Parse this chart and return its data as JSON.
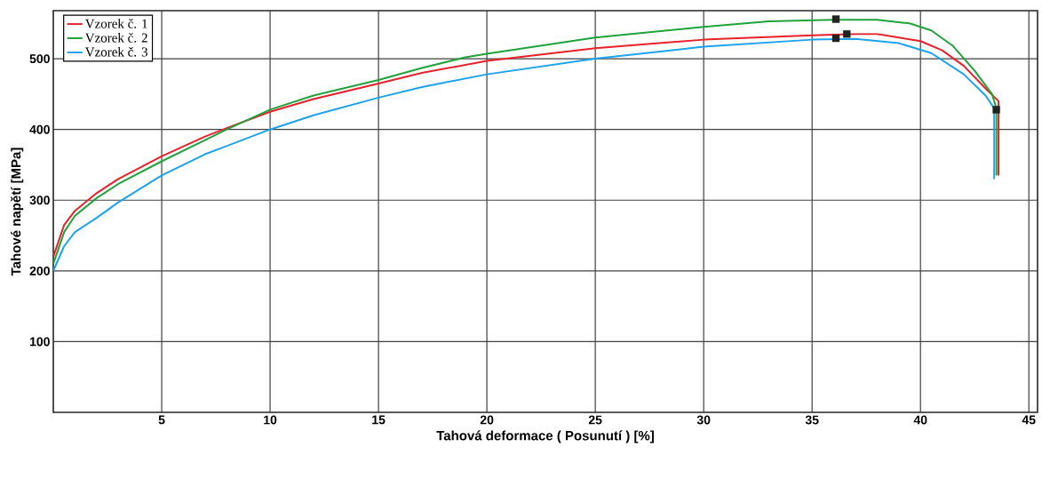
{
  "chart_data": {
    "type": "line",
    "xlabel": "Tahová deformace ( Posunutí ) [%]",
    "ylabel": "Tahové napětí [MPa]",
    "xlim": [
      0,
      45.4
    ],
    "ylim": [
      0,
      568
    ],
    "xticks": [
      5,
      10,
      15,
      20,
      25,
      30,
      35,
      40,
      45
    ],
    "yticks": [
      100,
      200,
      300,
      400,
      500
    ],
    "grid": true,
    "legend": "top left",
    "marker": "none",
    "line_style": "solid",
    "series": [
      {
        "name": "Vzorek č. 1",
        "color": "#e8202a",
        "x": [
          0,
          0.5,
          1,
          2,
          3,
          5,
          7,
          8,
          10,
          12,
          15,
          17,
          20,
          25,
          30,
          35,
          37,
          38,
          40,
          41,
          42,
          43,
          43.6,
          43.6
        ],
        "values": [
          220,
          265,
          285,
          310,
          330,
          362,
          390,
          402,
          425,
          443,
          465,
          480,
          497,
          515,
          527,
          533,
          535,
          535,
          525,
          512,
          490,
          458,
          440,
          335
        ]
      },
      {
        "name": "Vzorek č. 2",
        "color": "#1fa33a",
        "x": [
          0,
          0.5,
          1,
          2,
          3,
          5,
          7,
          8,
          10,
          12,
          15,
          17,
          19,
          20,
          25,
          30,
          33,
          36,
          38,
          39.5,
          40.5,
          41.5,
          42.5,
          43.3,
          43.5,
          43.5
        ],
        "values": [
          210,
          255,
          278,
          303,
          323,
          355,
          385,
          400,
          428,
          448,
          470,
          487,
          502,
          507,
          530,
          545,
          553,
          555,
          555,
          550,
          540,
          518,
          483,
          450,
          430,
          335
        ]
      },
      {
        "name": "Vzorek č. 3",
        "color": "#1ca3ec",
        "x": [
          0,
          0.5,
          1,
          2,
          3,
          5,
          7,
          10,
          12,
          15,
          17,
          20,
          25,
          30,
          35,
          37,
          39,
          40.5,
          42,
          43,
          43.4,
          43.4
        ],
        "values": [
          200,
          235,
          255,
          275,
          297,
          335,
          365,
          400,
          420,
          445,
          460,
          478,
          500,
          517,
          527,
          528,
          522,
          508,
          478,
          448,
          430,
          330
        ]
      },
      {
        "type": "scatter",
        "marker": "square",
        "color": "#222222",
        "x": [
          36.1,
          36.1,
          36.6,
          43.5
        ],
        "values": [
          556,
          529,
          535,
          428
        ]
      }
    ]
  }
}
